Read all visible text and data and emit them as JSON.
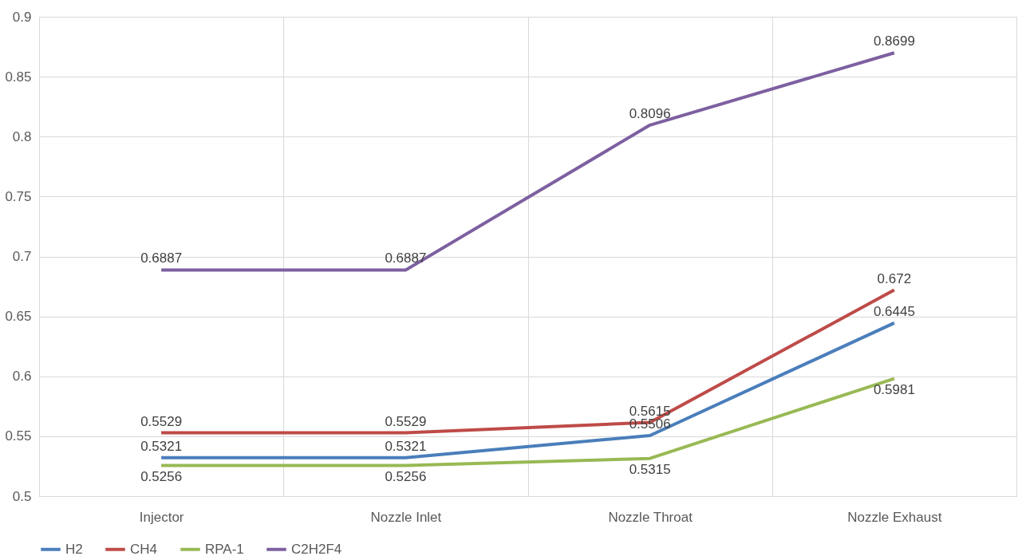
{
  "chart_data": {
    "type": "line",
    "categories": [
      "Injector",
      "Nozzle Inlet",
      "Nozzle Throat",
      "Nozzle Exhaust"
    ],
    "series": [
      {
        "name": "H2",
        "color": "#4a7ebb",
        "values": [
          0.5321,
          0.5321,
          0.5506,
          0.6445
        ]
      },
      {
        "name": "CH4",
        "color": "#be4b48",
        "values": [
          0.5529,
          0.5529,
          0.5615,
          0.672
        ]
      },
      {
        "name": "RPA-1",
        "color": "#98b954",
        "values": [
          0.5256,
          0.5256,
          0.5315,
          0.5981
        ]
      },
      {
        "name": "C2H2F4",
        "color": "#7d60a0",
        "values": [
          0.6887,
          0.6887,
          0.8096,
          0.8699
        ]
      }
    ],
    "ylim": [
      0.5,
      0.9
    ],
    "yticks": [
      0.5,
      0.55,
      0.6,
      0.65,
      0.7,
      0.75,
      0.8,
      0.85,
      0.9
    ],
    "grid": true,
    "legend": "bottom",
    "data_labels": true,
    "marker": "none",
    "line_style": "solid"
  }
}
